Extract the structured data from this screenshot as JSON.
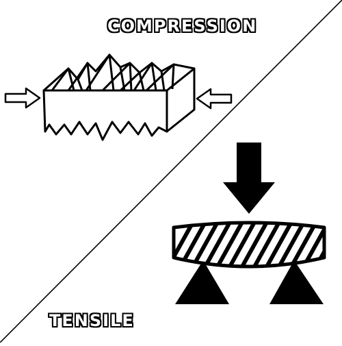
{
  "labels": {
    "compression": "COMPRESSION",
    "tensile": "TENSILE"
  },
  "colors": {
    "ink": "#000000",
    "paper": "#ffffff"
  },
  "icons": {
    "left_arrow": "right-pointing-arrow-icon",
    "right_arrow": "left-pointing-arrow-icon",
    "load_arrow": "down-arrow-icon",
    "compressed_block": "crumpled-block-icon",
    "beam": "hatched-beam-icon",
    "supports": "triangle-support-icon"
  }
}
